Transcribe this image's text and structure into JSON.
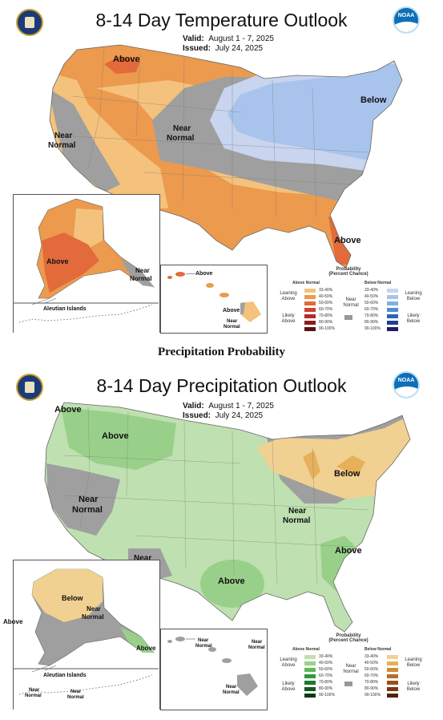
{
  "temperature": {
    "title": "8-14 Day Temperature Outlook",
    "valid_label": "Valid:",
    "valid_value": "August 1 - 7, 2025",
    "issued_label": "Issued:",
    "issued_value": "July 24, 2025",
    "labels": {
      "above_nw": "Above",
      "below_ne": "Below",
      "near_normal_west": "Near\nNormal",
      "near_normal_center": "Near\nNormal",
      "above_fl": "Above",
      "ak_above": "Above",
      "ak_near_normal": "Near\nNormal",
      "aleutian": "Aleutian Islands",
      "hi_above_1": "Above",
      "hi_above_2": "Above",
      "hi_near_normal": "Near\nNormal"
    },
    "legend": {
      "title": "Probability\n(Percent Chance)",
      "above_head": "Above Normal",
      "below_head": "Below Normal",
      "leaning_above": "Leaning\nAbove",
      "likely_above": "Likely\nAbove",
      "leaning_below": "Leaning\nBelow",
      "likely_below": "Likely\nBelow",
      "near_normal": "Near\nNormal",
      "ranges": [
        "33-40%",
        "40-50%",
        "50-60%",
        "60-70%",
        "70-80%",
        "80-90%",
        "90-100%"
      ],
      "above_colors": [
        "#f4c27c",
        "#ec9a4e",
        "#e36a3a",
        "#d2402c",
        "#b52a2a",
        "#8e1d1d",
        "#5e1010"
      ],
      "below_colors": [
        "#c9d4ee",
        "#a8c4ec",
        "#7fb0e6",
        "#4f8fd8",
        "#2b66b8",
        "#1f3f92",
        "#1c1f66"
      ],
      "near_color": "#999999"
    }
  },
  "middle_caption": "Precipitation Probability",
  "precipitation": {
    "title": "8-14 Day Precipitation Outlook",
    "valid_label": "Valid:",
    "valid_value": "August 1 - 7, 2025",
    "issued_label": "Issued:",
    "issued_value": "July 24, 2025",
    "labels": {
      "above_nw_coast": "Above",
      "above_north": "Above",
      "near_normal_west": "Near\nNormal",
      "near_normal_sw": "Near\nNormal",
      "above_tx": "Above",
      "near_normal_mid": "Near\nNormal",
      "below_ne": "Below",
      "above_se": "Above",
      "ak_below": "Below",
      "ak_near_normal": "Near\nNormal",
      "ak_above_west": "Above",
      "ak_above_se": "Above",
      "aleutian": "Aleutian Islands",
      "aleutian_nn1": "Near\nNormal",
      "aleutian_nn2": "Near\nNormal",
      "hi_nn1": "Near\nNormal",
      "hi_nn2": "Near\nNormal",
      "hi_nn3": "Near\nNormal"
    },
    "legend": {
      "title": "Probability\n(Percent Chance)",
      "above_head": "Above Normal",
      "below_head": "Below Normal",
      "leaning_above": "Leaning\nAbove",
      "likely_above": "Likely\nAbove",
      "leaning_below": "Leaning\nBelow",
      "likely_below": "Likely\nBelow",
      "near_normal": "Near\nNormal",
      "ranges": [
        "33-40%",
        "40-50%",
        "50-60%",
        "60-70%",
        "70-80%",
        "80-90%",
        "90-100%"
      ],
      "above_colors": [
        "#bfe0b0",
        "#98d08a",
        "#5fb85a",
        "#2f9a3a",
        "#1d7a2a",
        "#11591c",
        "#0b3a12"
      ],
      "below_colors": [
        "#f1d191",
        "#e7b05a",
        "#d28a3a",
        "#b96a2a",
        "#9a4e1e",
        "#7a3614",
        "#55210c"
      ],
      "near_color": "#999999"
    }
  },
  "colors": {
    "temp_lean_above": "#f4c27c",
    "temp_above": "#ec9a4e",
    "temp_above_strong": "#e36a3a",
    "temp_near": "#9f9f9f",
    "temp_lean_below": "#c9d4ee",
    "temp_below": "#a8c4ec",
    "precip_lean_above": "#bfe0b0",
    "precip_above": "#98d08a",
    "precip_lean_below": "#f1d191",
    "precip_below": "#e7b05a",
    "near": "#9f9f9f"
  },
  "icons": {
    "doc_seal": "commerce-seal-icon",
    "noaa_logo": "noaa-logo-icon"
  }
}
